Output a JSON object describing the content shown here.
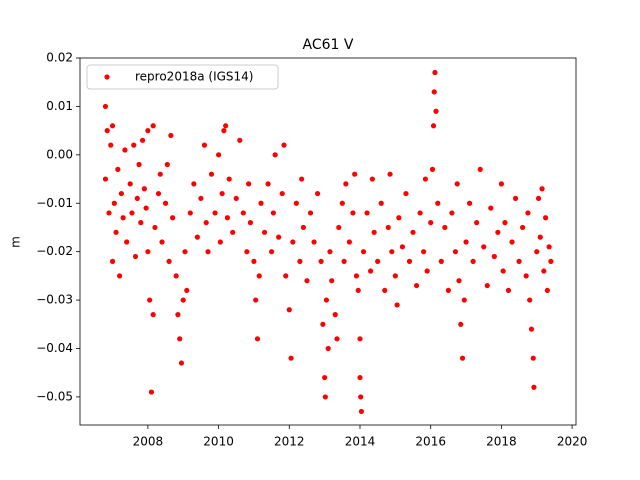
{
  "chart_data": {
    "type": "scatter",
    "title": "AC61 V",
    "y_label": "m",
    "x": [
      2006.8,
      2006.8,
      2006.85,
      2006.9,
      2006.95,
      2007.0,
      2007.0,
      2007.05,
      2007.1,
      2007.15,
      2007.2,
      2007.25,
      2007.3,
      2007.35,
      2007.4,
      2007.5,
      2007.55,
      2007.6,
      2007.65,
      2007.7,
      2007.75,
      2007.8,
      2007.85,
      2007.9,
      2007.95,
      2008.0,
      2008.0,
      2008.05,
      2008.1,
      2008.15,
      2008.15,
      2008.2,
      2008.3,
      2008.35,
      2008.4,
      2008.5,
      2008.55,
      2008.6,
      2008.65,
      2008.7,
      2008.8,
      2008.85,
      2008.9,
      2008.95,
      2009.0,
      2009.05,
      2009.1,
      2009.2,
      2009.3,
      2009.4,
      2009.5,
      2009.6,
      2009.65,
      2009.7,
      2009.8,
      2009.9,
      2010.0,
      2010.05,
      2010.1,
      2010.15,
      2010.2,
      2010.25,
      2010.3,
      2010.4,
      2010.5,
      2010.6,
      2010.7,
      2010.8,
      2010.85,
      2010.9,
      2011.0,
      2011.05,
      2011.1,
      2011.15,
      2011.2,
      2011.3,
      2011.4,
      2011.5,
      2011.55,
      2011.6,
      2011.7,
      2011.8,
      2011.85,
      2011.9,
      2012.0,
      2012.05,
      2012.1,
      2012.2,
      2012.3,
      2012.35,
      2012.4,
      2012.5,
      2012.6,
      2012.7,
      2012.8,
      2012.9,
      2012.95,
      2013.0,
      2013.02,
      2013.05,
      2013.1,
      2013.15,
      2013.2,
      2013.3,
      2013.35,
      2013.4,
      2013.5,
      2013.55,
      2013.6,
      2013.7,
      2013.8,
      2013.85,
      2013.9,
      2013.95,
      2014.0,
      2014.0,
      2014.02,
      2014.04,
      2014.1,
      2014.2,
      2014.3,
      2014.35,
      2014.4,
      2014.5,
      2014.6,
      2014.7,
      2014.8,
      2014.85,
      2014.9,
      2015.0,
      2015.05,
      2015.1,
      2015.2,
      2015.3,
      2015.4,
      2015.5,
      2015.6,
      2015.7,
      2015.8,
      2015.85,
      2015.9,
      2016.0,
      2016.05,
      2016.08,
      2016.1,
      2016.12,
      2016.15,
      2016.2,
      2016.3,
      2016.4,
      2016.5,
      2016.6,
      2016.7,
      2016.75,
      2016.8,
      2016.85,
      2016.9,
      2016.95,
      2017.0,
      2017.1,
      2017.2,
      2017.3,
      2017.4,
      2017.5,
      2017.6,
      2017.7,
      2017.8,
      2017.9,
      2018.0,
      2018.05,
      2018.1,
      2018.2,
      2018.3,
      2018.4,
      2018.5,
      2018.6,
      2018.7,
      2018.75,
      2018.8,
      2018.85,
      2018.9,
      2018.92,
      2019.0,
      2019.05,
      2019.1,
      2019.15,
      2019.2,
      2019.25,
      2019.3,
      2019.35,
      2019.4
    ],
    "series": [
      {
        "name": "repro2018a (IGS14)",
        "color": "#ff0000",
        "values": [
          0.01,
          -0.005,
          0.005,
          -0.012,
          0.002,
          -0.022,
          0.006,
          -0.01,
          -0.016,
          -0.003,
          -0.025,
          -0.008,
          -0.013,
          0.001,
          -0.018,
          -0.006,
          -0.012,
          0.002,
          -0.021,
          -0.009,
          -0.002,
          -0.014,
          0.003,
          -0.007,
          -0.011,
          0.005,
          -0.02,
          -0.03,
          -0.049,
          -0.033,
          0.006,
          -0.015,
          -0.008,
          -0.004,
          -0.018,
          -0.01,
          -0.002,
          -0.022,
          0.004,
          -0.013,
          -0.025,
          -0.033,
          -0.038,
          -0.043,
          -0.03,
          -0.02,
          -0.028,
          -0.012,
          -0.006,
          -0.017,
          -0.009,
          0.002,
          -0.014,
          -0.02,
          -0.004,
          -0.012,
          0.0,
          -0.018,
          -0.008,
          0.005,
          0.006,
          -0.013,
          -0.005,
          -0.016,
          -0.009,
          0.003,
          -0.012,
          -0.02,
          -0.006,
          -0.014,
          -0.022,
          -0.03,
          -0.038,
          -0.025,
          -0.01,
          -0.016,
          -0.006,
          -0.02,
          -0.012,
          0.0,
          -0.017,
          -0.008,
          0.002,
          -0.025,
          -0.032,
          -0.042,
          -0.018,
          -0.01,
          -0.022,
          -0.005,
          -0.015,
          -0.026,
          -0.012,
          -0.018,
          -0.008,
          -0.022,
          -0.035,
          -0.046,
          -0.05,
          -0.03,
          -0.04,
          -0.02,
          -0.026,
          -0.033,
          -0.038,
          -0.015,
          -0.01,
          -0.022,
          -0.006,
          -0.018,
          -0.012,
          -0.004,
          -0.025,
          -0.028,
          -0.038,
          -0.046,
          -0.05,
          -0.053,
          -0.02,
          -0.012,
          -0.024,
          -0.005,
          -0.016,
          -0.022,
          -0.01,
          -0.028,
          -0.015,
          -0.004,
          -0.02,
          -0.025,
          -0.031,
          -0.013,
          -0.019,
          -0.008,
          -0.022,
          -0.016,
          -0.027,
          -0.012,
          -0.02,
          -0.005,
          -0.024,
          -0.014,
          -0.003,
          0.006,
          0.013,
          0.017,
          0.009,
          -0.01,
          -0.022,
          -0.015,
          -0.028,
          -0.012,
          -0.02,
          -0.006,
          -0.026,
          -0.035,
          -0.042,
          -0.03,
          -0.018,
          -0.01,
          -0.022,
          -0.014,
          -0.003,
          -0.019,
          -0.027,
          -0.011,
          -0.021,
          -0.016,
          -0.006,
          -0.024,
          -0.014,
          -0.028,
          -0.018,
          -0.009,
          -0.022,
          -0.015,
          -0.025,
          -0.012,
          -0.03,
          -0.036,
          -0.042,
          -0.048,
          -0.02,
          -0.009,
          -0.017,
          -0.007,
          -0.024,
          -0.013,
          -0.028,
          -0.019,
          -0.022
        ]
      }
    ],
    "xlim": [
      2006.08,
      2020.11
    ],
    "ylim": [
      -0.0558,
      0.02
    ],
    "xticks": [
      2008,
      2010,
      2012,
      2014,
      2016,
      2018,
      2020
    ],
    "yticks": [
      {
        "value": 0.02,
        "label": "0.02"
      },
      {
        "value": 0.01,
        "label": "0.01"
      },
      {
        "value": 0,
        "label": "0.00"
      },
      {
        "value": -0.01,
        "label": "−0.01"
      },
      {
        "value": -0.02,
        "label": "−0.02"
      },
      {
        "value": -0.03,
        "label": "−0.03"
      },
      {
        "value": -0.04,
        "label": "−0.04"
      },
      {
        "value": -0.05,
        "label": "−0.05"
      }
    ],
    "legend": "upper left"
  }
}
